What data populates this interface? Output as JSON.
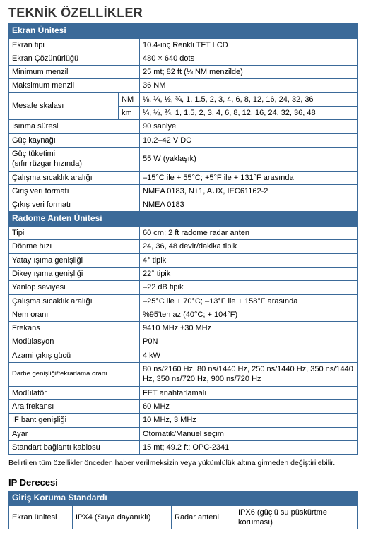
{
  "page_title": "TEKNİK ÖZELLİKLER",
  "section1": {
    "header": "Ekran Ünitesi",
    "rows": {
      "display_type_l": "Ekran tipi",
      "display_type_v": "10.4-inç Renkli TFT LCD",
      "resolution_l": "Ekran Çözünürlüğü",
      "resolution_v": "480 × 640 dots",
      "min_range_l": "Minimum menzil",
      "min_range_v": "25 mt; 82 ft (⅛ NM menzilde)",
      "max_range_l": "Maksimum menzil",
      "max_range_v": "36 NM",
      "range_scale_l": "Mesafe skalası",
      "nm_l": "NM",
      "nm_v": "⅛, ¼, ½, ¾, 1, 1.5, 2, 3, 4, 6, 8, 12, 16, 24, 32, 36",
      "km_l": "km",
      "km_v": "¼, ½, ¾, 1, 1.5, 2, 3, 4, 6, 8, 12, 16, 24, 32, 36, 48",
      "warmup_l": "Isınma süresi",
      "warmup_v": "90 saniye",
      "power_src_l": "Güç kaynağı",
      "power_src_v": "10.2–42 V DC",
      "power_cons_l": "Güç tüketimi\n(sıfır rüzgar hızında)",
      "power_cons_v": "55 W (yaklaşık)",
      "op_temp_l": "Çalışma sıcaklık aralığı",
      "op_temp_v": "–15°C ile + 55°C; +5°F ile + 131°F arasında",
      "in_fmt_l": "Giriş veri formatı",
      "in_fmt_v": "NMEA 0183, N+1, AUX, IEC61162-2",
      "out_fmt_l": "Çıkış veri formatı",
      "out_fmt_v": "NMEA 0183"
    }
  },
  "section2": {
    "header": "Radome Anten Ünitesi",
    "rows": {
      "type_l": "Tipi",
      "type_v": "60 cm; 2 ft radome radar anten",
      "rot_l": "Dönme hızı",
      "rot_v": "24, 36, 48 devir/dakika tipik",
      "hbeam_l": "Yatay ışıma genişliği",
      "hbeam_v": "4° tipik",
      "vbeam_l": "Dikey ışıma genişliği",
      "vbeam_v": "22° tipik",
      "sidelobe_l": "Yanlop seviyesi",
      "sidelobe_v": "–22 dB tipik",
      "op_temp_l": "Çalışma sıcaklık aralığı",
      "op_temp_v": "–25°C ile + 70°C; –13°F ile + 158°F arasında",
      "humid_l": "Nem oranı",
      "humid_v": "%95'ten az (40°C; + 104°F)",
      "freq_l": "Frekans",
      "freq_v": "9410 MHz ±30 MHz",
      "mod_l": "Modülasyon",
      "mod_v": "P0N",
      "peak_l": "Azami çıkış gücü",
      "peak_v": "4 kW",
      "pulse_l": "Darbe genişliği/tekrarlama oranı",
      "pulse_v": "80 ns/2160 Hz, 80 ns/1440 Hz, 250 ns/1440 Hz, 350 ns/1440 Hz, 350 ns/720 Hz, 900 ns/720 Hz",
      "modr_l": "Modülatör",
      "modr_v": "FET anahtarlamalı",
      "if_l": "Ara frekansı",
      "if_v": "60 MHz",
      "ifbw_l": "IF bant genişliği",
      "ifbw_v": "10 MHz, 3 MHz",
      "tune_l": "Ayar",
      "tune_v": "Otomatik/Manuel seçim",
      "cable_l": "Standart bağlantı kablosu",
      "cable_v": "15 mt; 49.2 ft; OPC-2341"
    }
  },
  "footnote": "Belirtilen tüm özellikler önceden haber verilmeksizin veya yükümlülük altına girmeden değiştirilebilir.",
  "ip": {
    "heading": "IP Derecesi",
    "header": "Giriş Koruma Standardı",
    "display_l": "Ekran ünitesi",
    "display_v": "IPX4 (Suya dayanıklı)",
    "ant_l": "Radar anteni",
    "ant_v": "IPX6 (güçlü su püskürtme koruması)"
  }
}
